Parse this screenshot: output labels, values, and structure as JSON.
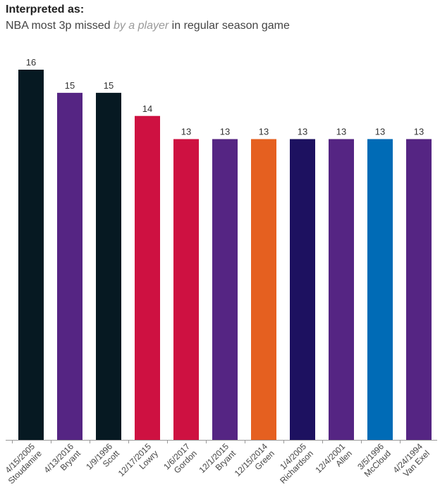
{
  "header": {
    "heading": "Interpreted as:",
    "sub_before": "NBA most 3p missed ",
    "sub_emph": "by a player",
    "sub_after": " in regular season game"
  },
  "chart_data": {
    "type": "bar",
    "title": "",
    "xlabel": "",
    "ylabel": "",
    "ylim": [
      0,
      16
    ],
    "grid": false,
    "legend": "none",
    "categories": [
      {
        "date": "4/15/2005",
        "player": "Stoudamire"
      },
      {
        "date": "4/13/2016",
        "player": "Bryant"
      },
      {
        "date": "1/9/1996",
        "player": "Scott"
      },
      {
        "date": "12/17/2015",
        "player": "Lowry"
      },
      {
        "date": "1/6/2017",
        "player": "Gordon"
      },
      {
        "date": "12/1/2015",
        "player": "Bryant"
      },
      {
        "date": "12/15/2014",
        "player": "Green"
      },
      {
        "date": "1/4/2005",
        "player": "Richardson"
      },
      {
        "date": "12/4/2001",
        "player": "Allen"
      },
      {
        "date": "3/5/1996",
        "player": "McCloud"
      },
      {
        "date": "4/24/1994",
        "player": "Van Exel"
      }
    ],
    "values": [
      16,
      15,
      15,
      14,
      13,
      13,
      13,
      13,
      13,
      13,
      13
    ],
    "colors": [
      "#061922",
      "#552583",
      "#061922",
      "#ce1141",
      "#ce1141",
      "#552583",
      "#e56020",
      "#1d1160",
      "#552583",
      "#006bb6",
      "#552583"
    ],
    "axis_color": "#999999"
  }
}
